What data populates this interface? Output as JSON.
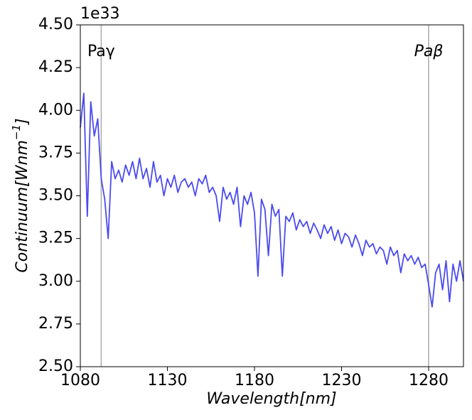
{
  "chart_data": {
    "type": "line",
    "offset_text": "1e33",
    "xlabel": "Wavelength[nm]",
    "ylabel": {
      "text": "Continuum[Wnm",
      "superscript": "−1",
      "suffix": "]"
    },
    "xlim": [
      1080,
      1300
    ],
    "ylim": [
      2.5,
      4.5
    ],
    "xticks": [
      1080,
      1130,
      1180,
      1230,
      1280
    ],
    "yticks": [
      {
        "value": 2.5,
        "label": "2.50"
      },
      {
        "value": 2.75,
        "label": "2.75"
      },
      {
        "value": 3.0,
        "label": "3.00"
      },
      {
        "value": 3.25,
        "label": "3.25"
      },
      {
        "value": 3.5,
        "label": "3.50"
      },
      {
        "value": 3.75,
        "label": "3.75"
      },
      {
        "value": 4.0,
        "label": "4.00"
      },
      {
        "value": 4.25,
        "label": "4.25"
      },
      {
        "value": 4.5,
        "label": "4.50"
      }
    ],
    "grid": false,
    "annotations": [
      {
        "text": "Paγ",
        "x": 1092,
        "color": "#aaaaaa",
        "italic": false
      },
      {
        "text": "Paβ",
        "x": 1280,
        "color": "#aaaaaa",
        "italic": true
      }
    ],
    "series": [
      {
        "color": "#4a4af0",
        "x": [
          1080,
          1082,
          1084,
          1086,
          1088,
          1090,
          1092,
          1094,
          1096,
          1098,
          1100,
          1102,
          1104,
          1106,
          1108,
          1110,
          1112,
          1114,
          1116,
          1118,
          1120,
          1122,
          1124,
          1126,
          1128,
          1130,
          1132,
          1134,
          1136,
          1138,
          1140,
          1142,
          1144,
          1146,
          1148,
          1150,
          1152,
          1154,
          1156,
          1158,
          1160,
          1162,
          1164,
          1166,
          1168,
          1170,
          1172,
          1174,
          1176,
          1178,
          1180,
          1182,
          1184,
          1186,
          1188,
          1190,
          1192,
          1194,
          1196,
          1198,
          1200,
          1202,
          1204,
          1206,
          1208,
          1210,
          1212,
          1214,
          1216,
          1218,
          1220,
          1222,
          1224,
          1226,
          1228,
          1230,
          1232,
          1234,
          1236,
          1238,
          1240,
          1242,
          1244,
          1246,
          1248,
          1250,
          1252,
          1254,
          1256,
          1258,
          1260,
          1262,
          1264,
          1266,
          1268,
          1270,
          1272,
          1274,
          1276,
          1278,
          1280,
          1282,
          1284,
          1286,
          1288,
          1290,
          1292,
          1294,
          1296,
          1298,
          1300
        ],
        "values": [
          3.9,
          4.1,
          3.38,
          4.05,
          3.85,
          3.95,
          3.6,
          3.48,
          3.25,
          3.7,
          3.6,
          3.65,
          3.58,
          3.68,
          3.62,
          3.7,
          3.6,
          3.72,
          3.6,
          3.66,
          3.55,
          3.7,
          3.58,
          3.62,
          3.5,
          3.6,
          3.55,
          3.62,
          3.52,
          3.58,
          3.6,
          3.55,
          3.58,
          3.5,
          3.6,
          3.57,
          3.62,
          3.52,
          3.55,
          3.5,
          3.35,
          3.55,
          3.48,
          3.52,
          3.45,
          3.55,
          3.32,
          3.5,
          3.45,
          3.52,
          3.4,
          3.03,
          3.48,
          3.42,
          3.15,
          3.45,
          3.38,
          3.42,
          3.03,
          3.38,
          3.35,
          3.4,
          3.3,
          3.36,
          3.32,
          3.35,
          3.28,
          3.34,
          3.3,
          3.25,
          3.33,
          3.28,
          3.32,
          3.24,
          3.3,
          3.22,
          3.28,
          3.26,
          3.2,
          3.27,
          3.22,
          3.15,
          3.24,
          3.2,
          3.22,
          3.16,
          3.2,
          3.18,
          3.1,
          3.2,
          3.15,
          3.18,
          3.05,
          3.16,
          3.12,
          3.15,
          3.1,
          3.14,
          3.08,
          3.1,
          2.98,
          2.85,
          3.05,
          3.1,
          2.95,
          3.12,
          2.88,
          3.1,
          3.0,
          3.12,
          3.0
        ]
      }
    ]
  }
}
